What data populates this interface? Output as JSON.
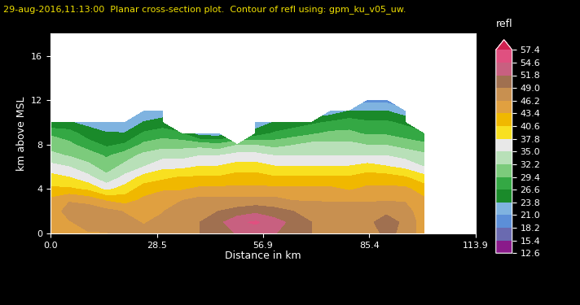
{
  "chart_data": {
    "type": "contour",
    "title": "29-aug-2016,11:13:00  Planar cross-section plot.  Contour of refl using: gpm_ku_v05_uw.",
    "x_label": "Distance in km",
    "y_label": "km above MSL",
    "xlim": [
      0.0,
      113.9
    ],
    "xticks": [
      0.0,
      28.5,
      56.9,
      85.4,
      113.9
    ],
    "ylim": [
      0,
      18
    ],
    "yticks": [
      0,
      4,
      8,
      12,
      16
    ],
    "x": [
      0,
      5,
      10,
      15,
      20,
      25,
      30,
      35,
      40,
      45,
      50,
      55,
      60,
      65,
      70,
      75,
      80,
      85,
      90,
      95,
      100
    ],
    "y": [
      0,
      1,
      2,
      3,
      4,
      5,
      6,
      7,
      8,
      9,
      10,
      11,
      12
    ],
    "cells": [
      [
        44,
        45,
        46,
        46,
        47,
        47,
        48,
        48,
        49,
        50,
        52,
        53,
        52,
        50,
        49,
        48,
        47,
        47,
        50,
        48,
        45
      ],
      [
        44,
        46,
        47,
        48,
        47,
        46,
        47,
        49,
        49,
        51,
        54,
        55,
        53,
        51,
        49,
        48,
        48,
        48,
        51,
        48,
        45
      ],
      [
        45,
        47,
        48,
        47,
        46,
        45,
        46,
        48,
        48,
        49,
        50,
        51,
        50,
        49,
        48,
        47,
        47,
        47,
        48,
        47,
        45
      ],
      [
        44,
        46,
        45,
        43,
        42,
        44,
        45,
        46,
        47,
        47,
        47,
        47,
        47,
        46,
        46,
        46,
        46,
        46,
        46,
        46,
        44
      ],
      [
        41,
        41,
        40,
        37,
        39,
        42,
        43,
        43,
        44,
        44,
        44,
        44,
        44,
        44,
        44,
        44,
        43,
        44,
        44,
        44,
        42
      ],
      [
        39,
        38,
        36,
        33,
        36,
        39,
        40,
        41,
        41,
        41,
        42,
        42,
        41,
        41,
        41,
        41,
        41,
        42,
        42,
        41,
        39
      ],
      [
        36,
        35,
        33,
        31,
        33,
        35,
        37,
        37,
        38,
        38,
        39,
        39,
        38,
        38,
        38,
        38,
        38,
        39,
        38,
        37,
        35
      ],
      [
        33,
        32,
        31,
        29,
        31,
        33,
        34,
        34,
        35,
        35,
        36,
        36,
        35,
        35,
        35,
        35,
        35,
        35,
        35,
        34,
        33
      ],
      [
        31,
        30,
        28,
        26,
        27,
        30,
        31,
        31,
        31,
        30,
        32,
        32,
        31,
        32,
        33,
        33,
        33,
        32,
        32,
        31,
        30
      ],
      [
        29,
        28,
        25,
        24,
        24,
        27,
        28,
        27,
        22,
        22,
        null,
        25,
        27,
        28,
        29,
        30,
        30,
        29,
        29,
        28,
        27
      ],
      [
        24,
        24,
        23,
        22,
        21,
        24,
        25,
        null,
        null,
        null,
        null,
        22,
        24,
        25,
        26,
        27,
        28,
        27,
        27,
        26,
        null
      ],
      [
        null,
        null,
        null,
        null,
        null,
        21,
        22,
        null,
        null,
        null,
        null,
        null,
        null,
        null,
        null,
        22,
        24,
        24,
        24,
        22,
        null
      ],
      [
        null,
        null,
        null,
        null,
        null,
        null,
        null,
        null,
        null,
        null,
        null,
        null,
        null,
        null,
        null,
        null,
        null,
        20,
        20,
        null,
        null
      ]
    ],
    "colorbar": {
      "label": "refl",
      "levels": [
        12.6,
        15.4,
        18.2,
        21.0,
        23.8,
        26.6,
        29.4,
        32.2,
        35.0,
        37.8,
        40.6,
        43.4,
        46.2,
        49.0,
        51.8,
        54.6,
        57.4
      ],
      "colors": [
        "#8a1a8a",
        "#6a6ab0",
        "#5c8fd8",
        "#7fb3e0",
        "#1a8a2a",
        "#34a844",
        "#7ccb7c",
        "#b8e0b8",
        "#e8e8e8",
        "#f8e020",
        "#f0b800",
        "#e0a040",
        "#c89050",
        "#a07050",
        "#c86080",
        "#e05080",
        "#d02050"
      ]
    }
  }
}
